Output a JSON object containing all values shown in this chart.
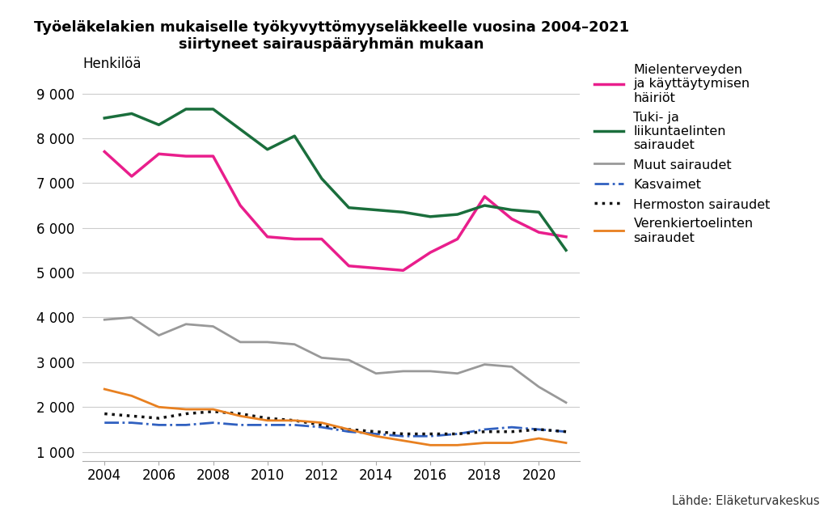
{
  "title_line1": "Työeläkelakien mukaiselle työkyvyttömyyseläkkeelle vuosina 2004–2021",
  "title_line2": "siirtyneet sairauspääryhmän mukaan",
  "ylabel": "Henkilöä",
  "source": "Lähde: Eläketurvakeskus",
  "years": [
    2004,
    2005,
    2006,
    2007,
    2008,
    2009,
    2010,
    2011,
    2012,
    2013,
    2014,
    2015,
    2016,
    2017,
    2018,
    2019,
    2020,
    2021
  ],
  "series": {
    "Mielenterveyden\nja käyttäytymisen\nhäiriöt": {
      "values": [
        7700,
        7150,
        7650,
        7600,
        7600,
        6500,
        5800,
        5750,
        5750,
        5150,
        5100,
        5050,
        5450,
        5750,
        6700,
        6200,
        5900,
        5800
      ],
      "color": "#e91e8c",
      "linestyle": "-",
      "linewidth": 2.5,
      "zorder": 3
    },
    "Tuki- ja\nliikuntaelinten\nsairaudet": {
      "values": [
        8450,
        8550,
        8300,
        8650,
        8650,
        8200,
        7750,
        8050,
        7100,
        6450,
        6400,
        6350,
        6250,
        6300,
        6500,
        6400,
        6350,
        5500
      ],
      "color": "#1a6e3c",
      "linestyle": "-",
      "linewidth": 2.5,
      "zorder": 3
    },
    "Muut sairaudet": {
      "values": [
        3950,
        4000,
        3600,
        3850,
        3800,
        3450,
        3450,
        3400,
        3100,
        3050,
        2750,
        2800,
        2800,
        2750,
        2950,
        2900,
        2450,
        2100
      ],
      "color": "#999999",
      "linestyle": "-",
      "linewidth": 2.0,
      "zorder": 2
    },
    "Kasvaimet": {
      "values": [
        1650,
        1650,
        1600,
        1600,
        1650,
        1600,
        1600,
        1600,
        1550,
        1450,
        1400,
        1350,
        1350,
        1400,
        1500,
        1550,
        1500,
        1450
      ],
      "color": "#3060c0",
      "linestyle": "-.",
      "linewidth": 2.0,
      "zorder": 2
    },
    "Hermoston sairaudet": {
      "values": [
        1850,
        1800,
        1750,
        1850,
        1900,
        1850,
        1750,
        1700,
        1600,
        1500,
        1450,
        1400,
        1400,
        1400,
        1450,
        1450,
        1500,
        1450
      ],
      "color": "#111111",
      "linestyle": ":",
      "linewidth": 2.5,
      "zorder": 2
    },
    "Verenkiertoelinten\nsairaudet": {
      "values": [
        2400,
        2250,
        2000,
        1950,
        1950,
        1800,
        1700,
        1700,
        1650,
        1500,
        1350,
        1250,
        1150,
        1150,
        1200,
        1200,
        1300,
        1200
      ],
      "color": "#e88020",
      "linestyle": "-",
      "linewidth": 2.0,
      "zorder": 2
    }
  },
  "ylim": [
    800,
    9600
  ],
  "yticks": [
    1000,
    2000,
    3000,
    4000,
    5000,
    6000,
    7000,
    8000,
    9000
  ],
  "ytick_labels": [
    "1 000",
    "2 000",
    "3 000",
    "4 000",
    "5 000",
    "6 000",
    "7 000",
    "8 000",
    "9 000"
  ],
  "xticks": [
    2004,
    2006,
    2008,
    2010,
    2012,
    2014,
    2016,
    2018,
    2020
  ],
  "background_color": "#ffffff",
  "grid_color": "#cccccc"
}
